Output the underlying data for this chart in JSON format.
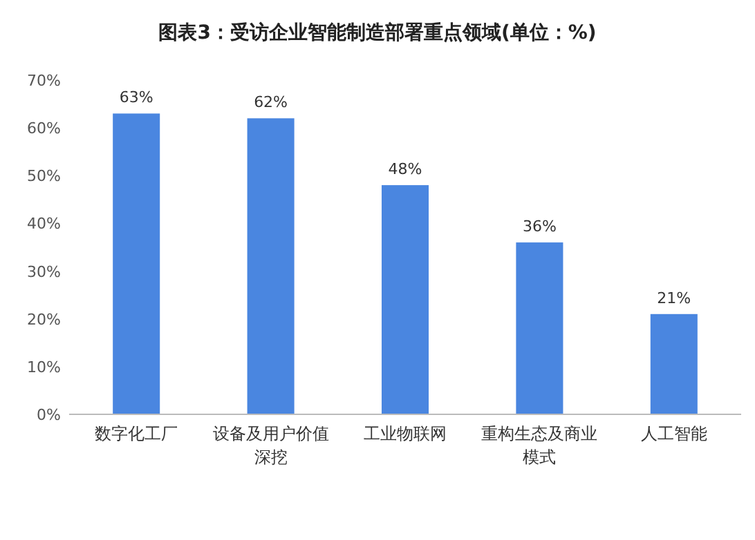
{
  "chart_data": {
    "type": "bar",
    "title": "图表3：受访企业智能制造部署重点领域(单位：%)",
    "categories": [
      "数字化工厂",
      "设备及用户价值深挖",
      "工业物联网",
      "重构生态及商业模式",
      "人工智能"
    ],
    "values": [
      63,
      62,
      48,
      36,
      21
    ],
    "value_labels": [
      "63%",
      "62%",
      "48%",
      "36%",
      "21%"
    ],
    "color": "#4a86e0",
    "ylim": [
      0,
      70
    ],
    "yticks": [
      {
        "value": 0,
        "label": "0%"
      },
      {
        "value": 10,
        "label": "10%"
      },
      {
        "value": 20,
        "label": "20%"
      },
      {
        "value": 30,
        "label": "30%"
      },
      {
        "value": 40,
        "label": "40%"
      },
      {
        "value": 50,
        "label": "50%"
      },
      {
        "value": 60,
        "label": "60%"
      },
      {
        "value": 70,
        "label": "70%"
      }
    ],
    "grid": false
  }
}
